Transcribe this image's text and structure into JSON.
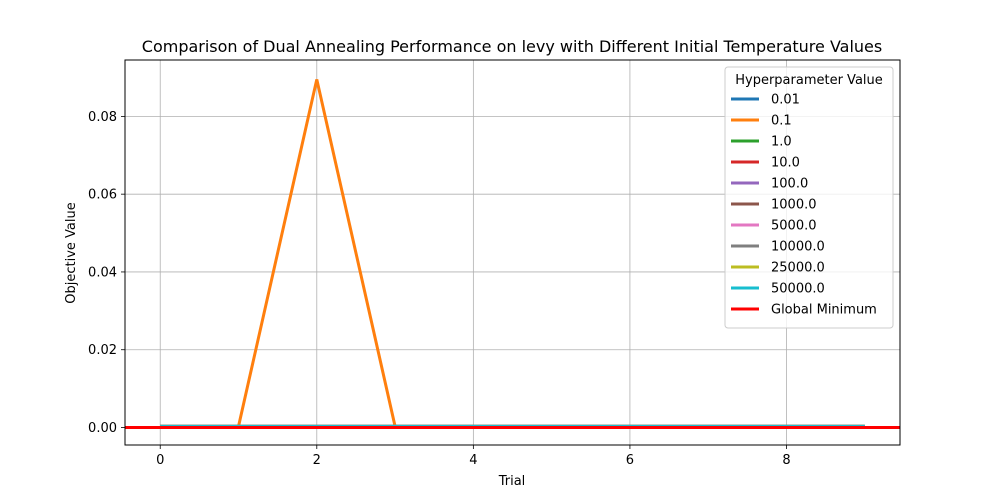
{
  "chart_data": {
    "type": "line",
    "title": "Comparison of Dual Annealing Performance on levy with Different Initial Temperature Values",
    "xlabel": "Trial",
    "ylabel": "Objective Value",
    "xlim": [
      -0.45,
      9.45
    ],
    "ylim": [
      -0.0045,
      0.0945
    ],
    "x_ticks": [
      0,
      2,
      4,
      6,
      8
    ],
    "y_ticks": [
      0.0,
      0.02,
      0.04,
      0.06,
      0.08
    ],
    "x_tick_labels": [
      "0",
      "2",
      "4",
      "6",
      "8"
    ],
    "y_tick_labels": [
      "0.00",
      "0.02",
      "0.04",
      "0.06",
      "0.08"
    ],
    "grid": true,
    "legend": {
      "title": "Hyperparameter Value",
      "placement": "top-right"
    },
    "x": [
      0,
      1,
      2,
      3,
      4,
      5,
      6,
      7,
      8,
      9
    ],
    "series": [
      {
        "name": "0.01",
        "color": "#1f77b4",
        "values": [
          0.0003,
          0.0003,
          0.0003,
          0.0003,
          0.0003,
          0.0003,
          0.0003,
          0.0003,
          0.0003,
          0.0003
        ]
      },
      {
        "name": "0.1",
        "color": "#ff7f0e",
        "values": [
          0.0003,
          0.0003,
          0.0895,
          0.0003,
          0.0003,
          0.0003,
          0.0003,
          0.0003,
          0.0003,
          0.0003
        ]
      },
      {
        "name": "1.0",
        "color": "#2ca02c",
        "values": [
          0.0003,
          0.0003,
          0.0003,
          0.0003,
          0.0003,
          0.0003,
          0.0003,
          0.0003,
          0.0003,
          0.0003
        ]
      },
      {
        "name": "10.0",
        "color": "#d62728",
        "values": [
          0.0003,
          0.0003,
          0.0003,
          0.0003,
          0.0003,
          0.0003,
          0.0003,
          0.0003,
          0.0003,
          0.0003
        ]
      },
      {
        "name": "100.0",
        "color": "#9467bd",
        "values": [
          0.0003,
          0.0003,
          0.0003,
          0.0003,
          0.0003,
          0.0003,
          0.0003,
          0.0003,
          0.0003,
          0.0003
        ]
      },
      {
        "name": "1000.0",
        "color": "#8c564b",
        "values": [
          0.0003,
          0.0003,
          0.0003,
          0.0003,
          0.0003,
          0.0003,
          0.0003,
          0.0003,
          0.0003,
          0.0003
        ]
      },
      {
        "name": "5000.0",
        "color": "#e377c2",
        "values": [
          0.0003,
          0.0003,
          0.0003,
          0.0003,
          0.0003,
          0.0003,
          0.0003,
          0.0003,
          0.0003,
          0.0003
        ]
      },
      {
        "name": "10000.0",
        "color": "#7f7f7f",
        "values": [
          0.0003,
          0.0003,
          0.0003,
          0.0003,
          0.0003,
          0.0003,
          0.0003,
          0.0003,
          0.0003,
          0.0003
        ]
      },
      {
        "name": "25000.0",
        "color": "#bcbd22",
        "values": [
          0.0003,
          0.0003,
          0.0003,
          0.0003,
          0.0003,
          0.0003,
          0.0003,
          0.0003,
          0.0003,
          0.0003
        ]
      },
      {
        "name": "50000.0",
        "color": "#17becf",
        "values": [
          0.0003,
          0.0003,
          0.0003,
          0.0003,
          0.0003,
          0.0003,
          0.0003,
          0.0003,
          0.0003,
          0.0003
        ]
      }
    ],
    "reference_line": {
      "name": "Global Minimum",
      "color": "#ff0000",
      "value": 0.0
    }
  }
}
